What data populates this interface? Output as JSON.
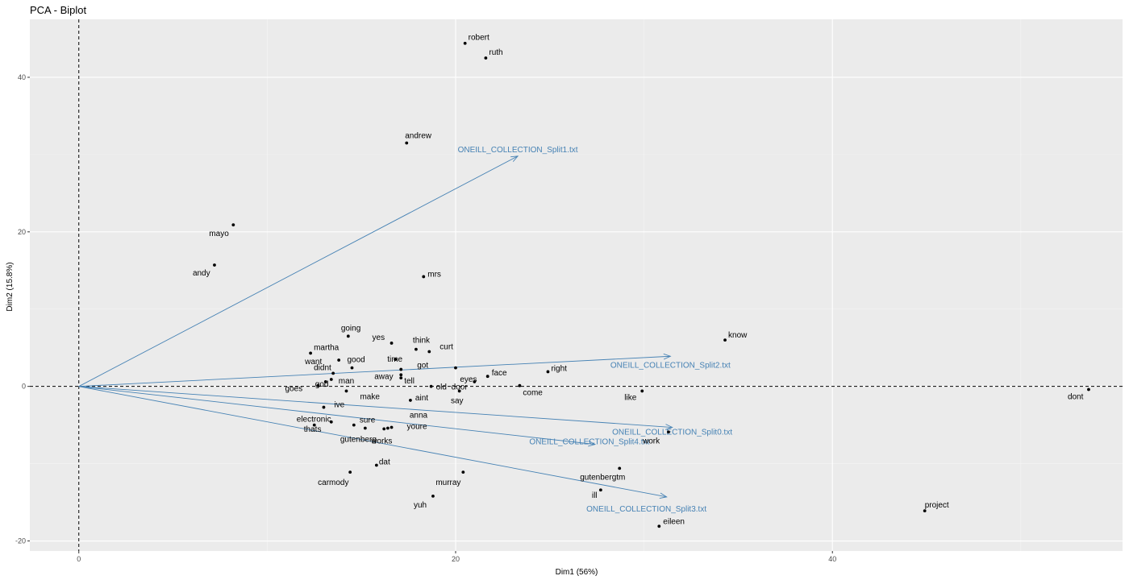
{
  "chart_data": {
    "type": "scatter",
    "title": "PCA - Biplot",
    "xlabel": "Dim1 (56%)",
    "ylabel": "Dim2 (15.8%)",
    "xlim": [
      -2.6,
      55.4
    ],
    "ylim": [
      -21.3,
      47.5
    ],
    "x_ticks": [
      0,
      20,
      40
    ],
    "y_ticks": [
      -20,
      0,
      20,
      40
    ],
    "grid": true,
    "reference_lines": {
      "x": 0,
      "y": 0
    },
    "colors": {
      "panel": "#ebebeb",
      "grid": "#ffffff",
      "points": "#000000",
      "arrows": "#4682b4"
    },
    "points": [
      {
        "label": "robert",
        "x": 20.5,
        "y": 44.4
      },
      {
        "label": "ruth",
        "x": 21.6,
        "y": 42.5
      },
      {
        "label": "andrew",
        "x": 17.4,
        "y": 31.5
      },
      {
        "label": "mayo",
        "x": 8.2,
        "y": 20.9
      },
      {
        "label": "andy",
        "x": 7.2,
        "y": 15.7
      },
      {
        "label": "mrs",
        "x": 18.3,
        "y": 14.2
      },
      {
        "label": "know",
        "x": 34.3,
        "y": 6.0
      },
      {
        "label": "going",
        "x": 14.3,
        "y": 6.5
      },
      {
        "label": "yes",
        "x": 16.6,
        "y": 5.6
      },
      {
        "label": "think",
        "x": 17.9,
        "y": 4.8
      },
      {
        "label": "martha",
        "x": 12.3,
        "y": 4.3
      },
      {
        "label": "curt",
        "x": 18.6,
        "y": 4.5
      },
      {
        "label": "time",
        "x": 16.8,
        "y": 3.5
      },
      {
        "label": "want",
        "x": 13.8,
        "y": 3.4
      },
      {
        "label": "good",
        "x": 14.5,
        "y": 2.4
      },
      {
        "label": "got",
        "x": 17.1,
        "y": 2.2
      },
      {
        "label": "didnt",
        "x": 13.5,
        "y": 1.7
      },
      {
        "label": "away",
        "x": 17.1,
        "y": 1.5
      },
      {
        "label": "right",
        "x": 24.9,
        "y": 1.9
      },
      {
        "label": "tell",
        "x": 17.1,
        "y": 1.1
      },
      {
        "label": "eyes",
        "x": 21.0,
        "y": 0.6
      },
      {
        "label": "face",
        "x": 21.7,
        "y": 1.3
      },
      {
        "label": "man",
        "x": 13.4,
        "y": 0.9
      },
      {
        "label": "goes",
        "x": 12.7,
        "y": 0.1
      },
      {
        "label": "old",
        "x": 18.7,
        "y": 0.0
      },
      {
        "label": "come",
        "x": 23.4,
        "y": 0.1
      },
      {
        "label": "door",
        "x": 20.2,
        "y": -0.6
      },
      {
        "label": "god",
        "x": 13.1,
        "y": 0.6
      },
      {
        "label": "make",
        "x": 14.2,
        "y": -0.6
      },
      {
        "label": "like",
        "x": 29.9,
        "y": -0.6
      },
      {
        "label": "aint",
        "x": 17.6,
        "y": -1.8
      },
      {
        "label": "say",
        "x": 20.0,
        "y": 2.4
      },
      {
        "label": "dont",
        "x": 53.6,
        "y": -0.4
      },
      {
        "label": "ive",
        "x": 13.0,
        "y": -2.7
      },
      {
        "label": "electronic",
        "x": 12.5,
        "y": -5.0
      },
      {
        "label": "sure",
        "x": 14.6,
        "y": -5.0
      },
      {
        "label": "thats",
        "x": 13.4,
        "y": -4.6
      },
      {
        "label": "gutenberg",
        "x": 15.2,
        "y": -5.4
      },
      {
        "label": "anna",
        "x": 16.4,
        "y": -5.4
      },
      {
        "label": "youre",
        "x": 16.6,
        "y": -5.3
      },
      {
        "label": "works",
        "x": 16.2,
        "y": -5.5
      },
      {
        "label": "work",
        "x": 31.3,
        "y": -5.9
      },
      {
        "label": "dat",
        "x": 15.8,
        "y": -10.2
      },
      {
        "label": "carmody",
        "x": 14.4,
        "y": -11.1
      },
      {
        "label": "murray",
        "x": 20.4,
        "y": -11.1
      },
      {
        "label": "gutenbergtm",
        "x": 28.7,
        "y": -10.6
      },
      {
        "label": "ill",
        "x": 27.7,
        "y": -13.4
      },
      {
        "label": "yuh",
        "x": 18.8,
        "y": -14.2
      },
      {
        "label": "project",
        "x": 44.9,
        "y": -16.1
      },
      {
        "label": "eileen",
        "x": 30.8,
        "y": -18.1
      }
    ],
    "vectors": [
      {
        "label": "ONEILL_COLLECTION_Split1.txt",
        "x": 23.3,
        "y": 29.8
      },
      {
        "label": "ONEILL_COLLECTION_Split2.txt",
        "x": 31.4,
        "y": 3.9
      },
      {
        "label": "ONEILL_COLLECTION_Split0.txt",
        "x": 31.5,
        "y": -5.3
      },
      {
        "label": "ONEILL_COLLECTION_Split4.txt",
        "x": 27.4,
        "y": -7.5
      },
      {
        "label": "ONEILL_COLLECTION_Split3.txt",
        "x": 31.2,
        "y": -14.3
      }
    ]
  }
}
